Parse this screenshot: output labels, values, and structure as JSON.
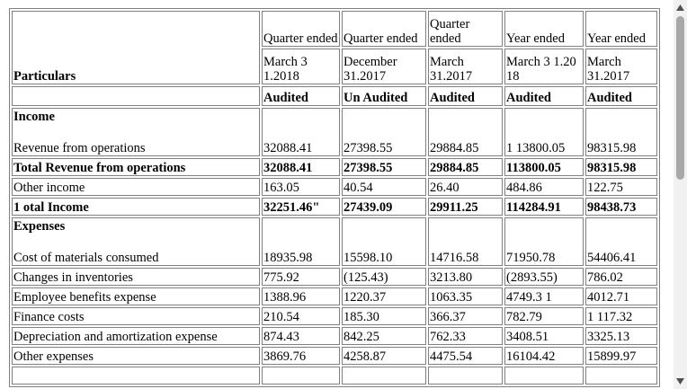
{
  "header": {
    "particulars": "Particulars",
    "col1": {
      "period": "Quarter ended",
      "date": "March 3 1.2018",
      "status": "Audited"
    },
    "col2": {
      "period": "Quarter ended",
      "date": "December 31.2017",
      "status": "Un Audited"
    },
    "col3": {
      "period": "Quarter ended",
      "date": "March 31.2017",
      "status": "Audited"
    },
    "col4": {
      "period": "Year ended",
      "date": "March 3 1.20 18",
      "status": "Audited"
    },
    "col5": {
      "period": "Year ended",
      "date": "March 31.2017",
      "status": "Audited"
    }
  },
  "income": {
    "heading": "Income",
    "revenue": {
      "label": "Revenue from operations",
      "values": [
        "32088.41",
        "27398.55",
        "29884.85",
        "1 13800.05",
        "98315.98"
      ]
    },
    "total_revenue": {
      "label": "Total Revenue from operations",
      "values": [
        "32088.41",
        "27398.55",
        "29884.85",
        "113800.05",
        "98315.98"
      ]
    },
    "other_income": {
      "label": "Other income",
      "values": [
        "163.05",
        "40.54",
        "26.40",
        "484.86",
        "122.75"
      ]
    },
    "total_income": {
      "label": "1 otal Income",
      "values": [
        "32251.46\"",
        "27439.09",
        "29911.25",
        "114284.91",
        "98438.73"
      ]
    }
  },
  "expenses": {
    "heading": "Expenses",
    "rows": [
      {
        "label": "Cost of materials consumed",
        "values": [
          "18935.98",
          "15598.10",
          "14716.58",
          "71950.78",
          "54406.41"
        ]
      },
      {
        "label": "Changes in inventories",
        "values": [
          "775.92",
          "(125.43)",
          "3213.80",
          "(2893.55)",
          "786.02"
        ]
      },
      {
        "label": "Employee benefits expense",
        "values": [
          "1388.96",
          "1220.37",
          "1063.35",
          "4749.3 1",
          "4012.71"
        ]
      },
      {
        "label": "Finance costs",
        "values": [
          "210.54",
          "185.30",
          "366.37",
          "782.79",
          "1 117.32"
        ]
      },
      {
        "label": "Depreciation and amortization expense",
        "values": [
          "874.43",
          "842.25",
          "762.33",
          "3408.51",
          "3325.13"
        ]
      },
      {
        "label": "Other expenses",
        "values": [
          "3869.76",
          "4258.87",
          "4475.54",
          "16104.42",
          "15899.97"
        ]
      }
    ]
  },
  "scrollbar": {
    "up_icon": "triangle-up-icon",
    "down_icon": "triangle-down-icon",
    "track_color": "#f1f1f1",
    "thumb_color": "#a8a8a8"
  }
}
